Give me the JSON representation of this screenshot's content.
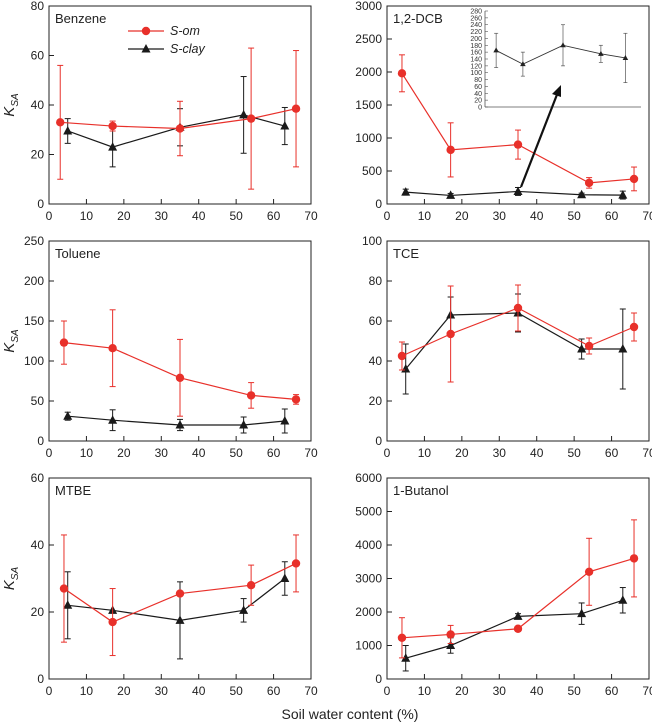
{
  "xlabel": "Soil water content (%)",
  "legend": [
    {
      "name": "S-om",
      "color": "#e8302a",
      "marker": "circle"
    },
    {
      "name": "S-clay",
      "color": "#1a1a1a",
      "marker": "triangle"
    }
  ],
  "chart_data": [
    {
      "type": "line",
      "title": "Benzene",
      "ylabel": "KSA",
      "xlim": [
        0,
        70
      ],
      "ylim": [
        0,
        80
      ],
      "xticks": [
        0,
        10,
        20,
        30,
        40,
        50,
        60,
        70
      ],
      "yticks": [
        0,
        20,
        40,
        60,
        80
      ],
      "legend": "top-left",
      "series": [
        {
          "name": "S-om",
          "color": "#e8302a",
          "marker": "circle",
          "x": [
            3,
            17,
            35,
            54,
            66
          ],
          "y": [
            33,
            31.5,
            30.5,
            34.5,
            38.5
          ],
          "err": [
            23,
            2,
            11,
            28.5,
            23.5
          ]
        },
        {
          "name": "S-clay",
          "color": "#1a1a1a",
          "marker": "triangle",
          "x": [
            5,
            17,
            35,
            52,
            63
          ],
          "y": [
            29.5,
            23,
            31,
            36,
            31.5
          ],
          "err": [
            5,
            8,
            7.5,
            15.5,
            7.5
          ]
        }
      ]
    },
    {
      "type": "line",
      "title": "1,2-DCB",
      "ylabel": "",
      "xlim": [
        0,
        70
      ],
      "ylim": [
        0,
        3000
      ],
      "xticks": [
        0,
        10,
        20,
        30,
        40,
        50,
        60,
        70
      ],
      "yticks": [
        0,
        500,
        1000,
        1500,
        2000,
        2500,
        3000
      ],
      "series": [
        {
          "name": "S-om",
          "color": "#e8302a",
          "marker": "circle",
          "x": [
            4,
            17,
            35,
            54,
            66
          ],
          "y": [
            1980,
            820,
            900,
            320,
            380
          ],
          "err": [
            280,
            410,
            220,
            80,
            180
          ]
        },
        {
          "name": "S-clay",
          "color": "#1a1a1a",
          "marker": "triangle",
          "x": [
            5,
            17,
            35,
            52,
            63
          ],
          "y": [
            180,
            130,
            190,
            140,
            135
          ],
          "err": [
            45,
            30,
            60,
            25,
            60
          ]
        }
      ],
      "inset": {
        "ylim": [
          0,
          280
        ],
        "yticks": [
          0,
          20,
          40,
          60,
          80,
          100,
          120,
          140,
          160,
          180,
          200,
          220,
          240,
          260,
          280
        ],
        "x": [
          5,
          17,
          35,
          52,
          63
        ],
        "y": [
          165,
          125,
          180,
          155,
          143
        ],
        "err": [
          50,
          35,
          60,
          25,
          72
        ]
      }
    },
    {
      "type": "line",
      "title": "Toluene",
      "ylabel": "KSA",
      "xlim": [
        0,
        70
      ],
      "ylim": [
        0,
        250
      ],
      "xticks": [
        0,
        10,
        20,
        30,
        40,
        50,
        60,
        70
      ],
      "yticks": [
        0,
        50,
        100,
        150,
        200,
        250
      ],
      "series": [
        {
          "name": "S-om",
          "color": "#e8302a",
          "marker": "circle",
          "x": [
            4,
            17,
            35,
            54,
            66
          ],
          "y": [
            123,
            116,
            79,
            57,
            52
          ],
          "err": [
            27,
            48,
            48,
            16,
            6
          ]
        },
        {
          "name": "S-clay",
          "color": "#1a1a1a",
          "marker": "triangle",
          "x": [
            5,
            17,
            35,
            52,
            63
          ],
          "y": [
            31,
            26,
            20,
            20,
            25
          ],
          "err": [
            5,
            13,
            7,
            10,
            15
          ]
        }
      ]
    },
    {
      "type": "line",
      "title": "TCE",
      "ylabel": "",
      "xlim": [
        0,
        70
      ],
      "ylim": [
        0,
        100
      ],
      "xticks": [
        0,
        10,
        20,
        30,
        40,
        50,
        60,
        70
      ],
      "yticks": [
        0,
        20,
        40,
        60,
        80,
        100
      ],
      "series": [
        {
          "name": "S-om",
          "color": "#e8302a",
          "marker": "circle",
          "x": [
            4,
            17,
            35,
            54,
            66
          ],
          "y": [
            42.5,
            53.5,
            66.5,
            47.5,
            57
          ],
          "err": [
            7,
            24,
            11.5,
            4,
            7
          ]
        },
        {
          "name": "S-clay",
          "color": "#1a1a1a",
          "marker": "triangle",
          "x": [
            5,
            17,
            35,
            52,
            63
          ],
          "y": [
            36,
            63,
            64,
            46,
            46
          ],
          "err": [
            12.5,
            9,
            9.5,
            5,
            20
          ]
        }
      ]
    },
    {
      "type": "line",
      "title": "MTBE",
      "ylabel": "KSA",
      "xlim": [
        0,
        70
      ],
      "ylim": [
        0,
        60
      ],
      "xticks": [
        0,
        10,
        20,
        30,
        40,
        50,
        60,
        70
      ],
      "yticks": [
        0,
        20,
        40,
        60
      ],
      "series": [
        {
          "name": "S-om",
          "color": "#e8302a",
          "marker": "circle",
          "x": [
            4,
            17,
            35,
            54,
            66
          ],
          "y": [
            27,
            17,
            25.5,
            28,
            34.5
          ],
          "err": [
            16,
            10,
            0,
            6,
            8.5
          ]
        },
        {
          "name": "S-clay",
          "color": "#1a1a1a",
          "marker": "triangle",
          "x": [
            5,
            17,
            35,
            52,
            63
          ],
          "y": [
            22,
            20.5,
            17.5,
            20.5,
            30
          ],
          "err": [
            10,
            0,
            11.5,
            3.5,
            5
          ]
        }
      ]
    },
    {
      "type": "line",
      "title": "1-Butanol",
      "ylabel": "",
      "xlim": [
        0,
        70
      ],
      "ylim": [
        0,
        6000
      ],
      "xticks": [
        0,
        10,
        20,
        30,
        40,
        50,
        60,
        70
      ],
      "yticks": [
        0,
        1000,
        2000,
        3000,
        4000,
        5000,
        6000
      ],
      "series": [
        {
          "name": "S-om",
          "color": "#e8302a",
          "marker": "circle",
          "x": [
            4,
            17,
            35,
            54,
            66
          ],
          "y": [
            1230,
            1330,
            1500,
            3200,
            3600
          ],
          "err": [
            600,
            270,
            0,
            1000,
            1150
          ]
        },
        {
          "name": "S-clay",
          "color": "#1a1a1a",
          "marker": "triangle",
          "x": [
            5,
            17,
            35,
            52,
            63
          ],
          "y": [
            620,
            1000,
            1870,
            1950,
            2350
          ],
          "err": [
            380,
            230,
            80,
            320,
            380
          ]
        }
      ]
    }
  ]
}
